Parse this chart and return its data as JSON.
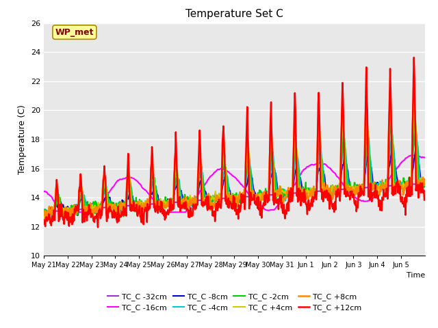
{
  "title": "Temperature Set C",
  "xlabel": "",
  "ylabel": "Temperature (C)",
  "ylim": [
    10,
    26
  ],
  "annotation_text": "WP_met",
  "annotation_color": "#8B0000",
  "annotation_bg": "#FFFF99",
  "series_names": [
    "TC_C -32cm",
    "TC_C -16cm",
    "TC_C -8cm",
    "TC_C -4cm",
    "TC_C -2cm",
    "TC_C +4cm",
    "TC_C +8cm",
    "TC_C +12cm"
  ],
  "series_colors": [
    "#9933CC",
    "#FF00FF",
    "#0000CD",
    "#00CCCC",
    "#00CC00",
    "#CCCC00",
    "#FF8800",
    "#FF0000"
  ],
  "series_linewidths": [
    1.5,
    1.5,
    1.5,
    1.5,
    1.5,
    1.5,
    1.8,
    1.8
  ],
  "background_color": "#E8E8E8",
  "grid_color": "#FFFFFF",
  "tick_label_dates": [
    "May 21",
    "May 22",
    "May 23",
    "May 24",
    "May 25",
    "May 26",
    "May 27",
    "May 28",
    "May 29",
    "May 30",
    "May 31",
    "Jun 1",
    "Jun 2",
    "Jun 3",
    "Jun 4",
    "Jun 5"
  ]
}
